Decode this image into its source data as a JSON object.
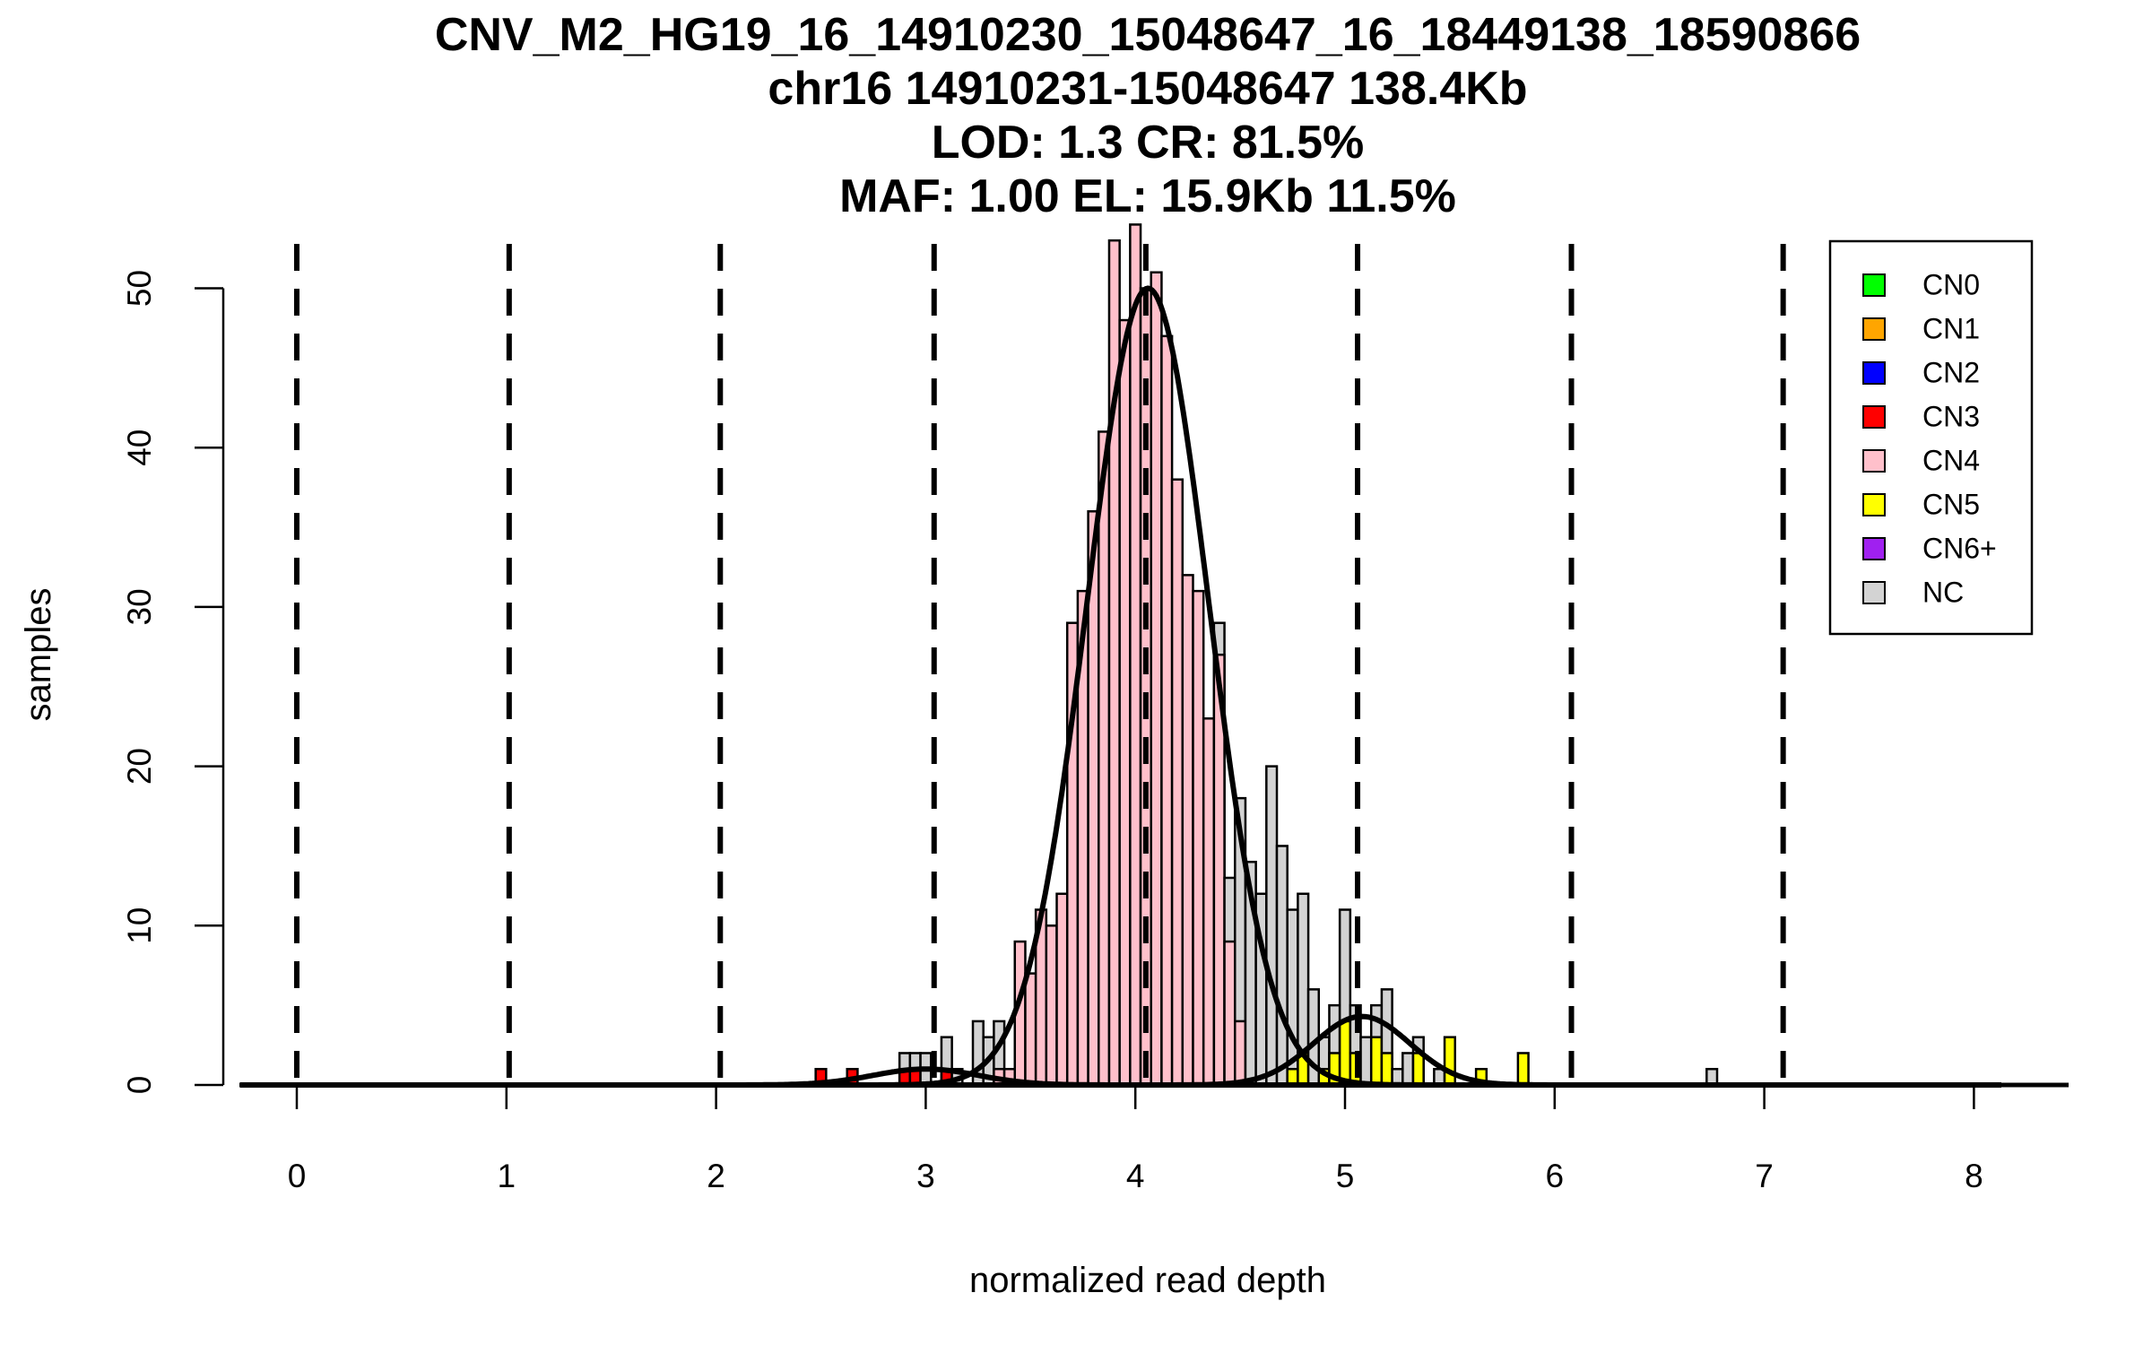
{
  "chart_data": {
    "type": "bar",
    "title_lines": [
      "CNV_M2_HG19_16_14910230_15048647_16_18449138_18590866",
      "chr16 14910231-15048647 138.4Kb",
      "LOD: 1.3 CR: 81.5%",
      "MAF: 1.00 EL: 15.9Kb 11.5%"
    ],
    "xlabel": "normalized read depth",
    "ylabel": "samples",
    "xlim": [
      -0.27,
      8.45
    ],
    "ylim": [
      0,
      50
    ],
    "x_ticks": [
      "0",
      "1",
      "2",
      "3",
      "4",
      "5",
      "6",
      "7",
      "8"
    ],
    "y_ticks": [
      "0",
      "10",
      "20",
      "30",
      "40",
      "50"
    ],
    "bin_width": 0.05,
    "cutoffs": [
      0,
      1.013,
      2.02,
      3.04,
      4.05,
      5.06,
      6.08,
      7.09
    ],
    "legend": {
      "position": "top-right",
      "entries": [
        {
          "label": "CN0",
          "color": "#00FF00"
        },
        {
          "label": "CN1",
          "color": "#FFA500"
        },
        {
          "label": "CN2",
          "color": "#0000FF"
        },
        {
          "label": "CN3",
          "color": "#FF0000"
        },
        {
          "label": "CN4",
          "color": "#FFC0CB"
        },
        {
          "label": "CN5",
          "color": "#FFFF00"
        },
        {
          "label": "CN6+",
          "color": "#A020F0"
        },
        {
          "label": "NC",
          "color": "#D3D3D3"
        }
      ]
    },
    "bins": [
      {
        "x": 2.5,
        "total": 1,
        "CN3": 1
      },
      {
        "x": 2.65,
        "total": 1,
        "CN3": 1
      },
      {
        "x": 2.9,
        "total": 2,
        "CN3": 1
      },
      {
        "x": 2.95,
        "total": 2,
        "CN3": 1
      },
      {
        "x": 3.0,
        "total": 2
      },
      {
        "x": 3.1,
        "total": 3,
        "CN3": 1
      },
      {
        "x": 3.15,
        "total": 1
      },
      {
        "x": 3.25,
        "total": 4
      },
      {
        "x": 3.3,
        "total": 3
      },
      {
        "x": 3.35,
        "total": 4,
        "CN4": 1
      },
      {
        "x": 3.4,
        "total": 1,
        "CN4": 1
      },
      {
        "x": 3.45,
        "total": 9,
        "CN4": 9
      },
      {
        "x": 3.5,
        "total": 7,
        "CN4": 7
      },
      {
        "x": 3.55,
        "total": 11,
        "CN4": 11
      },
      {
        "x": 3.6,
        "total": 10,
        "CN4": 10
      },
      {
        "x": 3.65,
        "total": 12,
        "CN4": 12
      },
      {
        "x": 3.7,
        "total": 29,
        "CN4": 29
      },
      {
        "x": 3.75,
        "total": 31,
        "CN4": 31
      },
      {
        "x": 3.8,
        "total": 36,
        "CN4": 36
      },
      {
        "x": 3.85,
        "total": 41,
        "CN4": 41
      },
      {
        "x": 3.9,
        "total": 53,
        "CN4": 53
      },
      {
        "x": 3.95,
        "total": 48,
        "CN4": 48
      },
      {
        "x": 4.0,
        "total": 54,
        "CN4": 54
      },
      {
        "x": 4.05,
        "total": 50,
        "CN4": 50
      },
      {
        "x": 4.1,
        "total": 51,
        "CN4": 51
      },
      {
        "x": 4.15,
        "total": 47,
        "CN4": 47
      },
      {
        "x": 4.2,
        "total": 38,
        "CN4": 38
      },
      {
        "x": 4.25,
        "total": 32,
        "CN4": 32
      },
      {
        "x": 4.3,
        "total": 31,
        "CN4": 31
      },
      {
        "x": 4.35,
        "total": 23,
        "CN4": 23
      },
      {
        "x": 4.4,
        "total": 29,
        "CN4": 27
      },
      {
        "x": 4.45,
        "total": 13,
        "CN4": 9
      },
      {
        "x": 4.5,
        "total": 18,
        "CN4": 4
      },
      {
        "x": 4.55,
        "total": 14
      },
      {
        "x": 4.6,
        "total": 12
      },
      {
        "x": 4.65,
        "total": 20
      },
      {
        "x": 4.7,
        "total": 15
      },
      {
        "x": 4.75,
        "total": 11,
        "CN5": 1
      },
      {
        "x": 4.8,
        "total": 12,
        "CN5": 2
      },
      {
        "x": 4.85,
        "total": 6
      },
      {
        "x": 4.9,
        "total": 3,
        "CN5": 1
      },
      {
        "x": 4.95,
        "total": 5,
        "CN5": 2
      },
      {
        "x": 5.0,
        "total": 11,
        "CN5": 4
      },
      {
        "x": 5.05,
        "total": 5,
        "CN5": 2
      },
      {
        "x": 5.1,
        "total": 3
      },
      {
        "x": 5.15,
        "total": 5,
        "CN5": 3
      },
      {
        "x": 5.2,
        "total": 6,
        "CN5": 2
      },
      {
        "x": 5.25,
        "total": 1
      },
      {
        "x": 5.3,
        "total": 2
      },
      {
        "x": 5.35,
        "total": 3,
        "CN5": 2
      },
      {
        "x": 5.45,
        "total": 1
      },
      {
        "x": 5.5,
        "total": 3,
        "CN5": 3
      },
      {
        "x": 5.65,
        "total": 1,
        "CN5": 1
      },
      {
        "x": 5.85,
        "total": 2,
        "CN5": 2
      },
      {
        "x": 6.75,
        "total": 1
      }
    ],
    "fitted_curves": [
      {
        "mean": 4.06,
        "sd": 0.29,
        "peak": 50
      },
      {
        "mean": 5.08,
        "sd": 0.23,
        "peak": 4.3
      },
      {
        "mean": 3.0,
        "sd": 0.25,
        "peak": 1.0
      }
    ],
    "curve_range": [
      -0.27,
      8.13
    ]
  }
}
